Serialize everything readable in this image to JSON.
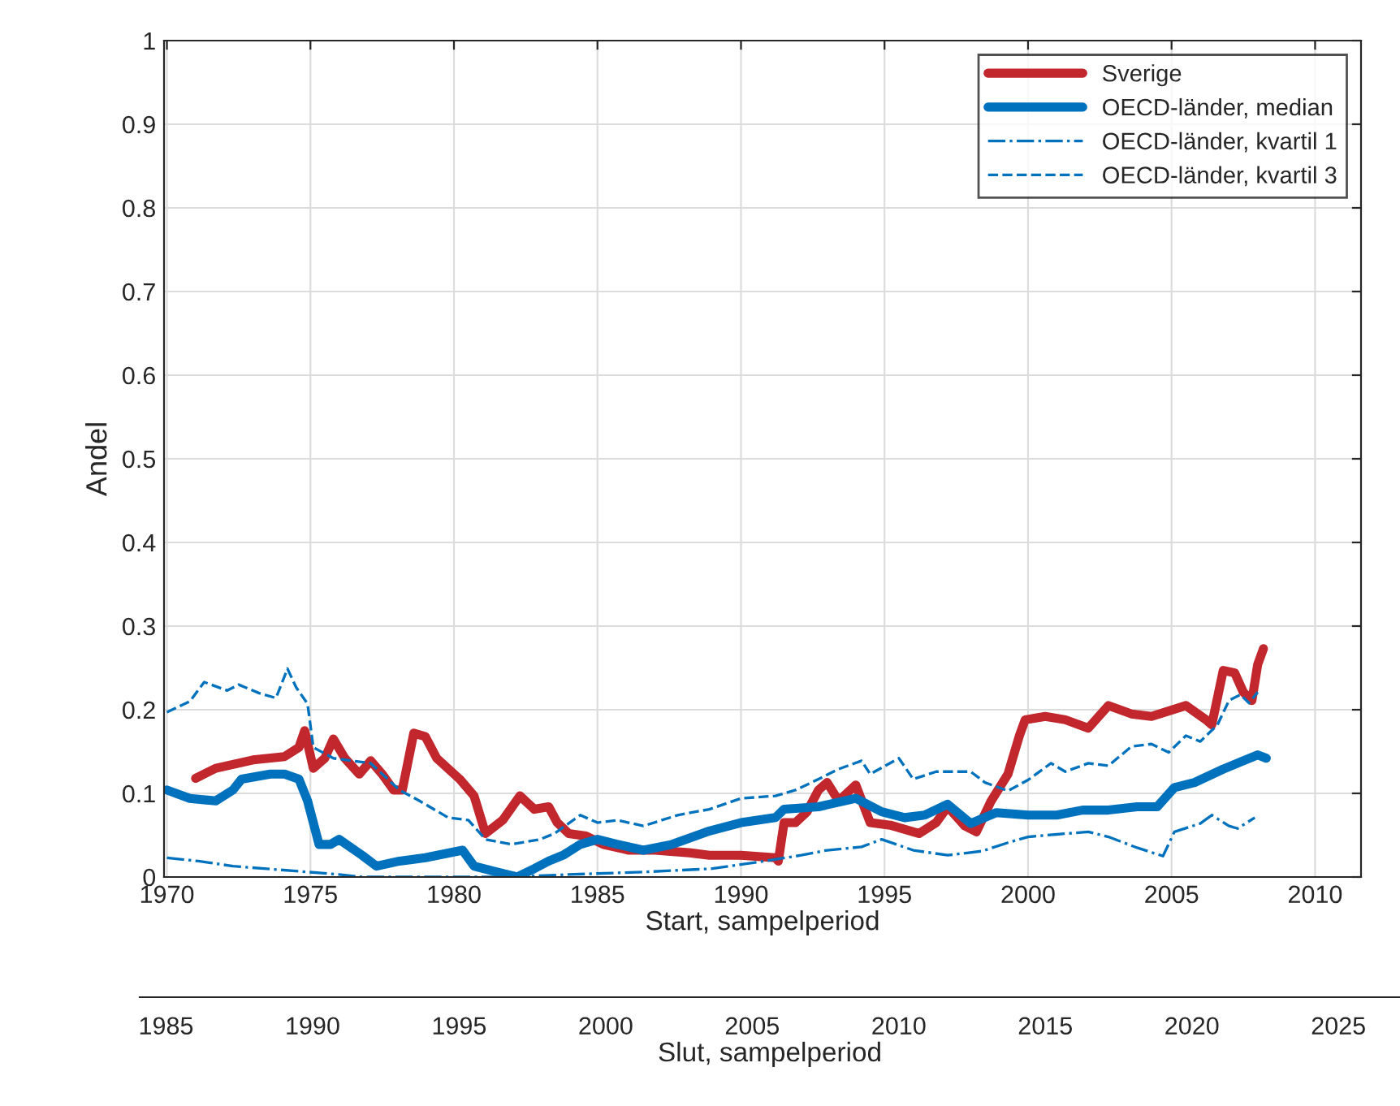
{
  "chart_data": {
    "type": "line",
    "xlabel": "Start, sampelperiod",
    "ylabel": "Andel",
    "x2label": "Slut, sampelperiod",
    "xlim": [
      1969.9,
      2011.6
    ],
    "xticks": [
      1970,
      1975,
      1980,
      1985,
      1990,
      1995,
      2000,
      2005,
      2010
    ],
    "x2lim": [
      1984.1,
      2027.1
    ],
    "x2ticks": [
      1985,
      1990,
      1995,
      2000,
      2005,
      2010,
      2015,
      2020,
      2025
    ],
    "ylim": [
      0,
      1
    ],
    "yticks": [
      0,
      0.1,
      0.2,
      0.3,
      0.4,
      0.5,
      0.6,
      0.7,
      0.8,
      0.9,
      1
    ],
    "grid": true,
    "legend": "top right",
    "series": [
      {
        "name": "Sverige",
        "color": "#c1272d",
        "line_style": "solid",
        "x": [
          1971.0,
          1971.7,
          1973.0,
          1974.1,
          1974.6,
          1974.8,
          1975.1,
          1975.5,
          1975.8,
          1976.2,
          1976.7,
          1977.1,
          1977.5,
          1977.9,
          1978.2,
          1978.6,
          1979.0,
          1979.4,
          1980.2,
          1980.7,
          1981.1,
          1981.7,
          1982.3,
          1982.8,
          1983.3,
          1983.6,
          1984.0,
          1984.6,
          1985.2,
          1986.1,
          1987.0,
          1988.2,
          1988.9,
          1990.0,
          1991.2,
          1991.3,
          1991.5,
          1991.9,
          1992.3,
          1992.7,
          1993.0,
          1993.4,
          1994.0,
          1994.5,
          1995.2,
          1996.2,
          1996.8,
          1997.2,
          1997.8,
          1998.2,
          1998.7,
          1999.3,
          1999.7,
          1999.9,
          2000.6,
          2001.3,
          2002.1,
          2002.8,
          2003.6,
          2004.3,
          2005.5,
          2006.2,
          2006.4,
          2006.8,
          2007.2,
          2007.5,
          2007.8,
          2008.0,
          2008.2
        ],
        "values": [
          0.118,
          0.13,
          0.14,
          0.144,
          0.155,
          0.175,
          0.13,
          0.142,
          0.165,
          0.142,
          0.123,
          0.139,
          0.123,
          0.104,
          0.104,
          0.172,
          0.168,
          0.142,
          0.117,
          0.097,
          0.052,
          0.068,
          0.097,
          0.081,
          0.084,
          0.065,
          0.052,
          0.049,
          0.039,
          0.032,
          0.032,
          0.029,
          0.026,
          0.026,
          0.023,
          0.019,
          0.065,
          0.065,
          0.078,
          0.104,
          0.113,
          0.091,
          0.11,
          0.065,
          0.062,
          0.052,
          0.065,
          0.084,
          0.061,
          0.054,
          0.09,
          0.123,
          0.169,
          0.188,
          0.192,
          0.188,
          0.178,
          0.205,
          0.195,
          0.192,
          0.205,
          0.188,
          0.182,
          0.247,
          0.244,
          0.221,
          0.211,
          0.254,
          0.273
        ]
      },
      {
        "name": "OECD-länder, median",
        "color": "#0072bd",
        "line_style": "solid",
        "x": [
          1970.0,
          1970.8,
          1971.7,
          1972.3,
          1972.6,
          1973.6,
          1974.1,
          1974.6,
          1974.9,
          1975.3,
          1975.7,
          1976.0,
          1976.8,
          1977.3,
          1978.1,
          1979.0,
          1980.3,
          1980.7,
          1981.5,
          1982.2,
          1982.8,
          1983.3,
          1983.8,
          1984.4,
          1985.0,
          1985.7,
          1986.6,
          1987.6,
          1988.9,
          1990.0,
          1991.2,
          1991.5,
          1992.7,
          1994.0,
          1994.9,
          1995.7,
          1996.4,
          1997.2,
          1998.0,
          1998.9,
          2000.0,
          2001.0,
          2001.9,
          2002.8,
          2003.8,
          2004.5,
          2005.1,
          2005.8,
          2006.8,
          2007.5,
          2008.0,
          2008.3
        ],
        "values": [
          0.104,
          0.094,
          0.091,
          0.104,
          0.117,
          0.123,
          0.123,
          0.117,
          0.091,
          0.039,
          0.039,
          0.045,
          0.026,
          0.013,
          0.019,
          0.023,
          0.032,
          0.013,
          0.006,
          0.0,
          0.01,
          0.019,
          0.026,
          0.039,
          0.045,
          0.039,
          0.032,
          0.039,
          0.055,
          0.065,
          0.071,
          0.081,
          0.084,
          0.094,
          0.078,
          0.071,
          0.074,
          0.087,
          0.064,
          0.077,
          0.074,
          0.074,
          0.08,
          0.08,
          0.084,
          0.084,
          0.107,
          0.113,
          0.129,
          0.139,
          0.146,
          0.142
        ]
      },
      {
        "name": "OECD-länder, kvartil 1",
        "color": "#0072bd",
        "line_style": "dashdot",
        "x": [
          1970.0,
          1971.1,
          1972.3,
          1973.4,
          1974.9,
          1976.0,
          1976.8,
          1978.0,
          1980.0,
          1982.0,
          1984.0,
          1986.6,
          1989.0,
          1991.0,
          1992.1,
          1993.0,
          1994.2,
          1994.9,
          1996.0,
          1997.2,
          1998.4,
          1999.3,
          2000.0,
          2001.0,
          2002.1,
          2002.8,
          2003.8,
          2004.7,
          2005.1,
          2006.0,
          2006.4,
          2007.0,
          2007.3,
          2007.9
        ],
        "values": [
          0.023,
          0.019,
          0.013,
          0.01,
          0.006,
          0.003,
          0.0,
          0.0,
          0.0,
          0.0,
          0.003,
          0.006,
          0.01,
          0.02,
          0.026,
          0.032,
          0.036,
          0.045,
          0.032,
          0.026,
          0.031,
          0.041,
          0.048,
          0.051,
          0.054,
          0.048,
          0.035,
          0.025,
          0.054,
          0.064,
          0.074,
          0.061,
          0.058,
          0.071
        ]
      },
      {
        "name": "OECD-länder, kvartil 3",
        "color": "#0072bd",
        "line_style": "dashed",
        "x": [
          1970.0,
          1970.8,
          1971.3,
          1972.1,
          1972.5,
          1973.2,
          1973.8,
          1974.2,
          1974.5,
          1974.9,
          1975.1,
          1975.8,
          1977.1,
          1978.1,
          1978.8,
          1979.8,
          1980.5,
          1981.1,
          1982.0,
          1983.0,
          1983.5,
          1984.4,
          1985.0,
          1985.7,
          1986.6,
          1987.8,
          1988.9,
          1990.0,
          1991.2,
          1991.9,
          1992.7,
          1993.4,
          1994.2,
          1994.5,
          1995.5,
          1996.0,
          1996.8,
          1998.0,
          1998.5,
          1999.3,
          2000.0,
          2000.8,
          2001.3,
          2002.1,
          2002.8,
          2003.6,
          2004.3,
          2004.9,
          2005.5,
          2006.0,
          2006.6,
          2007.0,
          2007.4,
          2007.7,
          2008.0
        ],
        "values": [
          0.197,
          0.21,
          0.233,
          0.223,
          0.23,
          0.22,
          0.214,
          0.249,
          0.227,
          0.207,
          0.155,
          0.142,
          0.136,
          0.104,
          0.091,
          0.071,
          0.068,
          0.045,
          0.039,
          0.045,
          0.052,
          0.074,
          0.065,
          0.068,
          0.061,
          0.074,
          0.081,
          0.094,
          0.097,
          0.104,
          0.117,
          0.129,
          0.139,
          0.123,
          0.142,
          0.117,
          0.126,
          0.126,
          0.113,
          0.103,
          0.116,
          0.136,
          0.126,
          0.136,
          0.133,
          0.156,
          0.159,
          0.149,
          0.169,
          0.162,
          0.182,
          0.211,
          0.218,
          0.208,
          0.221
        ]
      }
    ]
  }
}
